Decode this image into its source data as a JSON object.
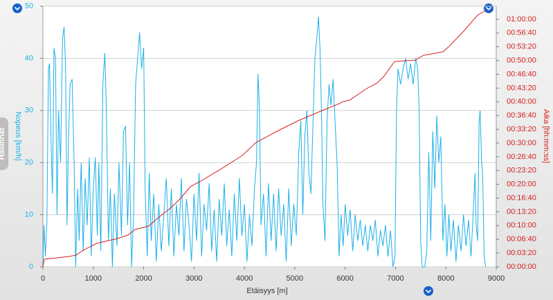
{
  "ui": {
    "side_tab": "Hallinnat"
  },
  "chart_data": {
    "type": "line",
    "xlabel": "Etäisyys [m]",
    "ylabel": "Nopeus [km/h]",
    "y2label": "Aika [hh:mm:ss]",
    "xlim": [
      0,
      9000
    ],
    "ylim": [
      0,
      50
    ],
    "y2lim": [
      0,
      3790
    ],
    "xticks": [
      0,
      1000,
      2000,
      3000,
      4000,
      5000,
      6000,
      7000,
      8000,
      9000
    ],
    "yticks": [
      0,
      10,
      20,
      30,
      40,
      50
    ],
    "y2ticks": [
      {
        "value": 0,
        "label": "00:00:00"
      },
      {
        "value": 200,
        "label": "00:03:20"
      },
      {
        "value": 400,
        "label": "00:06:40"
      },
      {
        "value": 600,
        "label": "00:10:00"
      },
      {
        "value": 800,
        "label": "00:13:20"
      },
      {
        "value": 1000,
        "label": "00:16:40"
      },
      {
        "value": 1200,
        "label": "00:20:00"
      },
      {
        "value": 1400,
        "label": "00:23:20"
      },
      {
        "value": 1600,
        "label": "00:26:40"
      },
      {
        "value": 1800,
        "label": "00:30:00"
      },
      {
        "value": 2000,
        "label": "00:33:20"
      },
      {
        "value": 2200,
        "label": "00:36:40"
      },
      {
        "value": 2400,
        "label": "00:40:00"
      },
      {
        "value": 2600,
        "label": "00:43:20"
      },
      {
        "value": 2800,
        "label": "00:46:40"
      },
      {
        "value": 3000,
        "label": "00:50:00"
      },
      {
        "value": 3200,
        "label": "00:53:20"
      },
      {
        "value": 3400,
        "label": "00:56:40"
      },
      {
        "value": 3600,
        "label": "01:00:00"
      }
    ],
    "grid": true,
    "series": [
      {
        "color": "#1ab0e8",
        "axis": "y",
        "x": [
          0,
          20,
          50,
          80,
          110,
          130,
          160,
          190,
          220,
          250,
          280,
          310,
          350,
          390,
          420,
          450,
          480,
          510,
          540,
          580,
          620,
          650,
          690,
          720,
          760,
          800,
          840,
          880,
          920,
          960,
          1000,
          1040,
          1080,
          1110,
          1150,
          1190,
          1230,
          1260,
          1300,
          1340,
          1380,
          1420,
          1470,
          1510,
          1560,
          1600,
          1640,
          1680,
          1720,
          1760,
          1800,
          1840,
          1880,
          1920,
          1960,
          2000,
          2030,
          2070,
          2110,
          2150,
          2200,
          2250,
          2300,
          2350,
          2400,
          2450,
          2500,
          2550,
          2600,
          2650,
          2700,
          2750,
          2800,
          2850,
          2900,
          2950,
          3000,
          3050,
          3100,
          3150,
          3200,
          3250,
          3300,
          3350,
          3400,
          3450,
          3500,
          3550,
          3600,
          3650,
          3700,
          3750,
          3800,
          3850,
          3900,
          3950,
          4000,
          4050,
          4100,
          4150,
          4200,
          4240,
          4270,
          4300,
          4330,
          4380,
          4430,
          4480,
          4530,
          4580,
          4630,
          4680,
          4730,
          4780,
          4830,
          4880,
          4930,
          4980,
          5030,
          5080,
          5120,
          5160,
          5200,
          5240,
          5280,
          5320,
          5360,
          5400,
          5440,
          5470,
          5500,
          5530,
          5560,
          5600,
          5640,
          5680,
          5720,
          5760,
          5800,
          5840,
          5880,
          5920,
          5960,
          6000,
          6050,
          6100,
          6150,
          6200,
          6250,
          6300,
          6350,
          6400,
          6450,
          6500,
          6550,
          6600,
          6650,
          6700,
          6750,
          6800,
          6850,
          6900,
          6950,
          6990,
          7020,
          7050,
          7100,
          7150,
          7200,
          7250,
          7300,
          7350,
          7400,
          7440,
          7470,
          7500,
          7530,
          7580,
          7620,
          7660,
          7700,
          7740,
          7780,
          7820,
          7860,
          7900,
          7940,
          7980,
          8020,
          8060,
          8100,
          8150,
          8200,
          8250,
          8300,
          8350,
          8400,
          8450,
          8500,
          8550,
          8580,
          8600,
          8630,
          8660,
          8680,
          8710,
          8730,
          8760,
          8790
        ],
        "values": [
          0,
          8,
          2,
          9,
          38,
          39,
          25,
          14,
          42,
          40,
          10,
          30,
          20,
          44,
          46,
          38,
          8,
          25,
          35,
          36,
          20,
          0,
          15,
          5,
          20,
          3,
          17,
          8,
          21,
          2,
          15,
          21,
          6,
          20,
          3,
          35,
          41,
          30,
          5,
          15,
          0,
          14,
          4,
          20,
          6,
          26,
          27,
          8,
          20,
          0,
          10,
          35,
          40,
          45,
          38,
          42,
          15,
          2,
          18,
          5,
          14,
          1,
          12,
          3,
          10,
          17,
          4,
          15,
          2,
          12,
          6,
          17,
          3,
          13,
          8,
          1,
          14,
          5,
          18,
          2,
          12,
          7,
          16,
          3,
          11,
          1,
          13,
          6,
          16,
          4,
          11,
          2,
          14,
          5,
          17,
          6,
          12,
          1,
          10,
          4,
          15,
          20,
          37,
          30,
          8,
          14,
          2,
          16,
          5,
          14,
          3,
          15,
          6,
          12,
          1,
          15,
          4,
          12,
          6,
          22,
          28,
          10,
          25,
          30,
          18,
          14,
          27,
          40,
          44,
          48,
          42,
          30,
          12,
          5,
          28,
          35,
          31,
          36,
          28,
          20,
          2,
          10,
          4,
          12,
          6,
          11,
          3,
          10,
          5,
          9,
          4,
          8,
          3,
          8,
          5,
          9,
          2,
          7,
          4,
          8,
          2,
          7,
          0,
          2,
          30,
          38,
          35,
          38,
          40,
          36,
          39,
          35,
          40,
          38,
          30,
          5,
          0,
          0,
          3,
          22,
          5,
          26,
          15,
          29,
          20,
          25,
          5,
          12,
          2,
          10,
          3,
          9,
          1,
          8,
          3,
          10,
          4,
          9,
          2,
          12,
          18,
          8,
          5,
          28,
          30,
          20,
          18,
          2,
          0
        ]
      },
      {
        "color": "#d42020",
        "axis": "y2",
        "x": [
          0,
          27,
          522,
          660,
          797,
          1072,
          1484,
          1690,
          1827,
          2102,
          2240,
          2514,
          2721,
          2927,
          3133,
          3545,
          3957,
          4232,
          4644,
          5056,
          5606,
          5881,
          5949,
          6087,
          6430,
          6636,
          6774,
          6980,
          7392,
          7557,
          7942,
          8079,
          8354,
          8629,
          8794
        ],
        "values": [
          0,
          111,
          151,
          171,
          241,
          342,
          412,
          462,
          543,
          593,
          684,
          844,
          985,
          1166,
          1247,
          1427,
          1619,
          1810,
          1970,
          2121,
          2292,
          2372,
          2403,
          2423,
          2594,
          2674,
          2775,
          2986,
          3006,
          3076,
          3126,
          3217,
          3428,
          3659,
          3730
        ]
      }
    ]
  }
}
